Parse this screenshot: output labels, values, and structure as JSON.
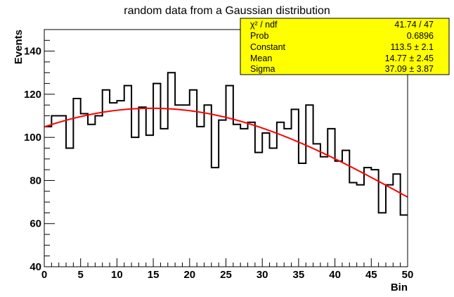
{
  "chart_data": {
    "type": "bar",
    "title": "random data from a Gaussian distribution",
    "xlabel": "Bin",
    "ylabel": "Events",
    "xlim": [
      0,
      50
    ],
    "ylim": [
      40,
      150
    ],
    "x_ticks": [
      0,
      5,
      10,
      15,
      20,
      25,
      30,
      35,
      40,
      45,
      50
    ],
    "y_ticks": [
      40,
      60,
      80,
      100,
      120,
      140
    ],
    "bin_width": 1,
    "series": [
      {
        "histogram": true,
        "color": "#000000",
        "values": [
          105,
          110,
          110,
          95,
          118,
          111,
          106,
          110,
          122,
          116,
          117,
          124,
          100,
          114,
          101,
          125,
          104,
          130,
          115,
          115,
          122,
          105,
          115,
          86,
          108,
          124,
          106,
          104,
          107,
          93,
          102,
          95,
          107,
          104,
          113,
          88,
          115,
          97,
          91,
          104,
          89,
          94,
          79,
          78,
          86,
          85,
          65,
          78,
          83,
          64
        ]
      }
    ],
    "fit": {
      "color": "#ff0000",
      "function": "gaus",
      "constant": 113.5,
      "mean": 14.77,
      "sigma": 37.09
    },
    "stats_box": {
      "background": "#ffff00",
      "rows": [
        {
          "label": "χ² / ndf",
          "value": "41.74 / 47"
        },
        {
          "label": "Prob",
          "value": "0.6896"
        },
        {
          "label": "Constant",
          "value": "113.5 ± 2.1"
        },
        {
          "label": "Mean",
          "value": "14.77 ± 2.45"
        },
        {
          "label": "Sigma",
          "value": "37.09 ± 3.87"
        }
      ]
    }
  }
}
